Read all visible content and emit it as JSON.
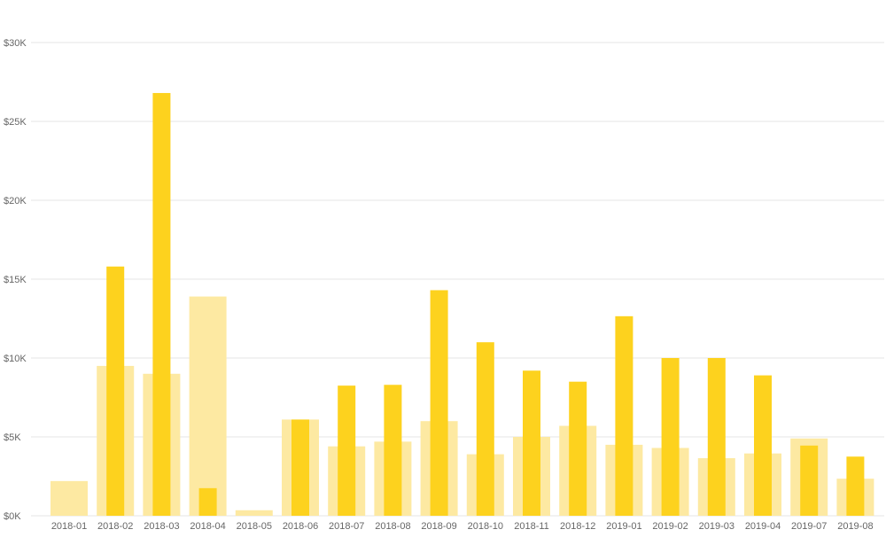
{
  "chart_data": {
    "type": "bar",
    "title": "",
    "xlabel": "",
    "ylabel": "",
    "ylim": [
      0,
      30000
    ],
    "y_ticks": [
      {
        "value": 0,
        "label": "$0K"
      },
      {
        "value": 5000,
        "label": "$5K"
      },
      {
        "value": 10000,
        "label": "$10K"
      },
      {
        "value": 15000,
        "label": "$15K"
      },
      {
        "value": 20000,
        "label": "$20K"
      },
      {
        "value": 25000,
        "label": "$25K"
      },
      {
        "value": 30000,
        "label": "$30K"
      }
    ],
    "grid": true,
    "legend": "none",
    "categories": [
      "2018-01",
      "2018-02",
      "2018-03",
      "2018-04",
      "2018-05",
      "2018-06",
      "2018-07",
      "2018-08",
      "2018-09",
      "2018-10",
      "2018-11",
      "2018-12",
      "2019-01",
      "2019-02",
      "2019-03",
      "2019-04",
      "2019-07",
      "2019-08"
    ],
    "series": [
      {
        "color": "#FDE9A2",
        "values": [
          2200,
          9500,
          9000,
          13900,
          350,
          6100,
          4400,
          4700,
          6000,
          3900,
          5000,
          5700,
          4500,
          4300,
          3650,
          3950,
          4900,
          2350
        ]
      },
      {
        "color": "#FDD21E",
        "values": [
          null,
          15800,
          26800,
          1750,
          null,
          6100,
          8250,
          8300,
          14300,
          11000,
          9200,
          8500,
          12650,
          10000,
          10000,
          8900,
          4450,
          3750
        ]
      }
    ]
  }
}
